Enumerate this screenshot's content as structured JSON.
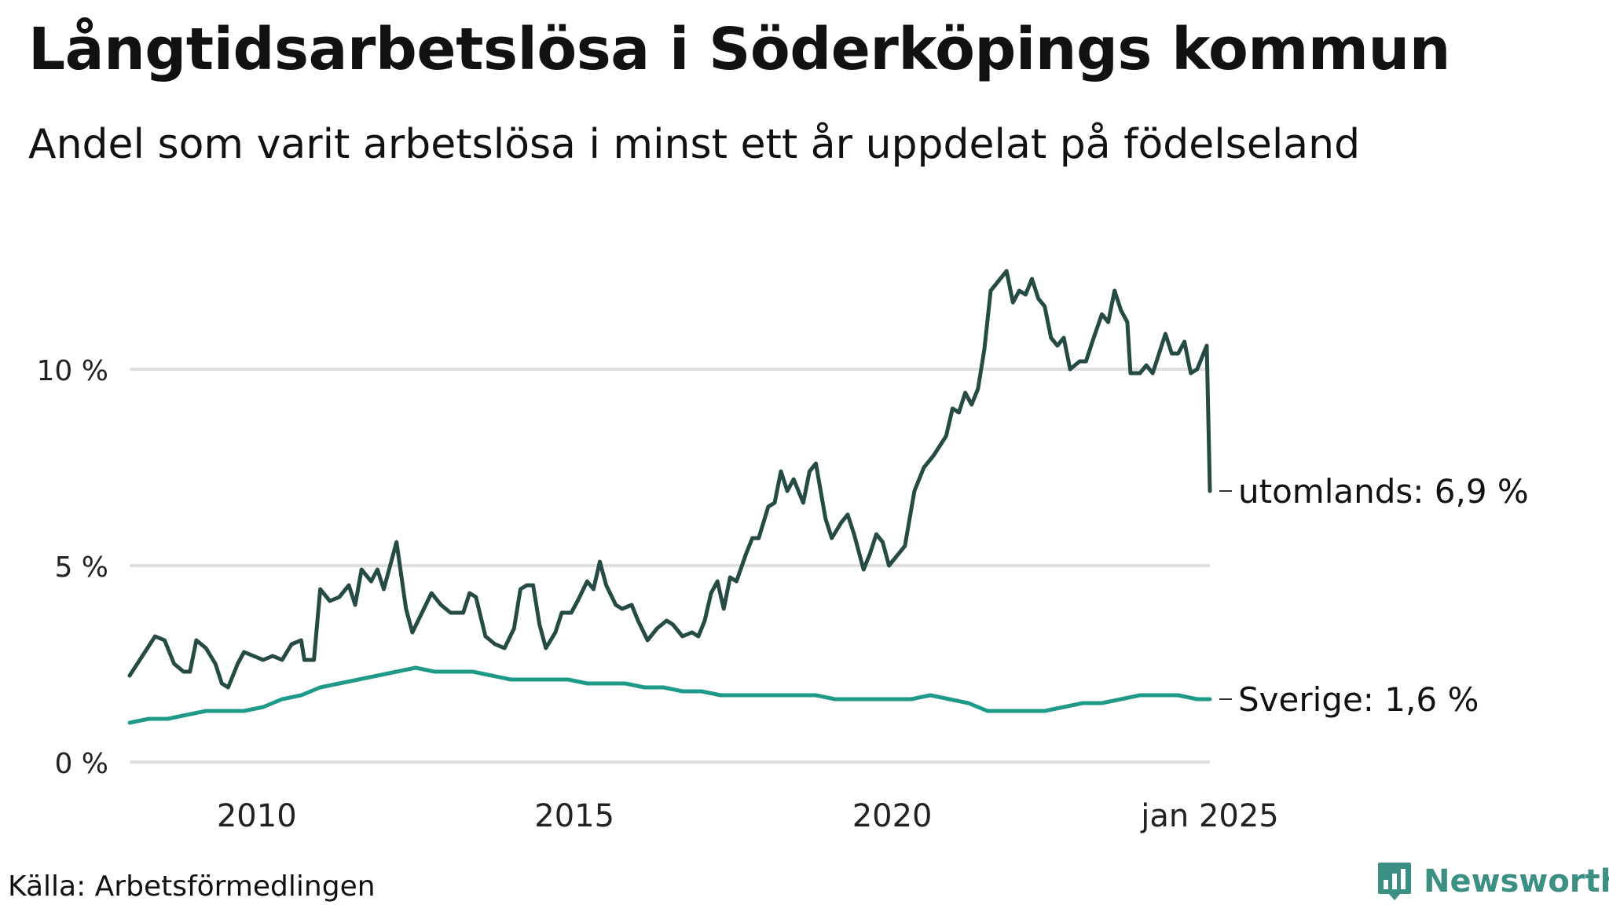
{
  "title": "Långtidsarbetslösa i Söderköpings kommun",
  "subtitle": "Andel som varit arbetslösa i minst ett år uppdelat på födelseland",
  "source": "Källa: Arbetsförmedlingen",
  "brand": "Newsworthy",
  "colors": {
    "utomlands": "#264a44",
    "sverige": "#1f9a88",
    "grid": "#e0e0e0",
    "brand": "#3b8f83"
  },
  "chart_data": {
    "type": "line",
    "title": "Långtidsarbetslösa i Söderköpings kommun",
    "xlabel": "",
    "ylabel": "",
    "xlim": [
      2008.0,
      2025.0
    ],
    "ylim": [
      0,
      14
    ],
    "y_ticks": [
      {
        "value": 0,
        "label": "0 %"
      },
      {
        "value": 5,
        "label": "5 %"
      },
      {
        "value": 10,
        "label": "10 %"
      }
    ],
    "x_ticks": [
      {
        "value": 2010,
        "label": "2010"
      },
      {
        "value": 2015,
        "label": "2015"
      },
      {
        "value": 2020,
        "label": "2020"
      },
      {
        "value": 2025,
        "label": "jan 2025"
      }
    ],
    "series": [
      {
        "name": "utomlands",
        "end_label": "utomlands: 6,9 %",
        "points": [
          [
            2008.0,
            2.2
          ],
          [
            2008.2,
            2.7
          ],
          [
            2008.4,
            3.2
          ],
          [
            2008.55,
            3.1
          ],
          [
            2008.7,
            2.5
          ],
          [
            2008.85,
            2.3
          ],
          [
            2008.95,
            2.3
          ],
          [
            2009.05,
            3.1
          ],
          [
            2009.2,
            2.9
          ],
          [
            2009.35,
            2.5
          ],
          [
            2009.45,
            2.0
          ],
          [
            2009.55,
            1.9
          ],
          [
            2009.7,
            2.5
          ],
          [
            2009.8,
            2.8
          ],
          [
            2009.95,
            2.7
          ],
          [
            2010.1,
            2.6
          ],
          [
            2010.25,
            2.7
          ],
          [
            2010.4,
            2.6
          ],
          [
            2010.55,
            3.0
          ],
          [
            2010.7,
            3.1
          ],
          [
            2010.75,
            2.6
          ],
          [
            2010.9,
            2.6
          ],
          [
            2011.0,
            4.4
          ],
          [
            2011.15,
            4.1
          ],
          [
            2011.3,
            4.2
          ],
          [
            2011.45,
            4.5
          ],
          [
            2011.55,
            4.0
          ],
          [
            2011.65,
            4.9
          ],
          [
            2011.8,
            4.6
          ],
          [
            2011.9,
            4.9
          ],
          [
            2012.0,
            4.4
          ],
          [
            2012.2,
            5.6
          ],
          [
            2012.35,
            3.9
          ],
          [
            2012.45,
            3.3
          ],
          [
            2012.6,
            3.8
          ],
          [
            2012.75,
            4.3
          ],
          [
            2012.9,
            4.0
          ],
          [
            2013.05,
            3.8
          ],
          [
            2013.25,
            3.8
          ],
          [
            2013.35,
            4.3
          ],
          [
            2013.45,
            4.2
          ],
          [
            2013.6,
            3.2
          ],
          [
            2013.75,
            3.0
          ],
          [
            2013.9,
            2.9
          ],
          [
            2014.05,
            3.4
          ],
          [
            2014.15,
            4.4
          ],
          [
            2014.25,
            4.5
          ],
          [
            2014.35,
            4.5
          ],
          [
            2014.45,
            3.5
          ],
          [
            2014.55,
            2.9
          ],
          [
            2014.7,
            3.3
          ],
          [
            2014.8,
            3.8
          ],
          [
            2014.95,
            3.8
          ],
          [
            2015.05,
            4.1
          ],
          [
            2015.2,
            4.6
          ],
          [
            2015.3,
            4.4
          ],
          [
            2015.4,
            5.1
          ],
          [
            2015.5,
            4.5
          ],
          [
            2015.65,
            4.0
          ],
          [
            2015.75,
            3.9
          ],
          [
            2015.9,
            4.0
          ],
          [
            2016.0,
            3.6
          ],
          [
            2016.15,
            3.1
          ],
          [
            2016.3,
            3.4
          ],
          [
            2016.45,
            3.6
          ],
          [
            2016.55,
            3.5
          ],
          [
            2016.7,
            3.2
          ],
          [
            2016.85,
            3.3
          ],
          [
            2016.95,
            3.2
          ],
          [
            2017.05,
            3.6
          ],
          [
            2017.15,
            4.3
          ],
          [
            2017.25,
            4.6
          ],
          [
            2017.35,
            3.9
          ],
          [
            2017.45,
            4.7
          ],
          [
            2017.55,
            4.6
          ],
          [
            2017.7,
            5.3
          ],
          [
            2017.8,
            5.7
          ],
          [
            2017.9,
            5.7
          ],
          [
            2018.05,
            6.5
          ],
          [
            2018.15,
            6.6
          ],
          [
            2018.25,
            7.4
          ],
          [
            2018.35,
            6.9
          ],
          [
            2018.45,
            7.2
          ],
          [
            2018.6,
            6.6
          ],
          [
            2018.7,
            7.4
          ],
          [
            2018.8,
            7.6
          ],
          [
            2018.95,
            6.2
          ],
          [
            2019.05,
            5.7
          ],
          [
            2019.2,
            6.1
          ],
          [
            2019.3,
            6.3
          ],
          [
            2019.4,
            5.8
          ],
          [
            2019.55,
            4.9
          ],
          [
            2019.65,
            5.3
          ],
          [
            2019.75,
            5.8
          ],
          [
            2019.85,
            5.6
          ],
          [
            2019.95,
            5.0
          ],
          [
            2020.05,
            5.2
          ],
          [
            2020.2,
            5.5
          ],
          [
            2020.35,
            6.9
          ],
          [
            2020.5,
            7.5
          ],
          [
            2020.65,
            7.8
          ],
          [
            2020.85,
            8.3
          ],
          [
            2020.95,
            9.0
          ],
          [
            2021.05,
            8.9
          ],
          [
            2021.15,
            9.4
          ],
          [
            2021.25,
            9.1
          ],
          [
            2021.35,
            9.5
          ],
          [
            2021.45,
            10.5
          ],
          [
            2021.55,
            12.0
          ],
          [
            2021.7,
            12.3
          ],
          [
            2021.8,
            12.5
          ],
          [
            2021.9,
            11.7
          ],
          [
            2022.0,
            12.0
          ],
          [
            2022.1,
            11.9
          ],
          [
            2022.2,
            12.3
          ],
          [
            2022.3,
            11.8
          ],
          [
            2022.4,
            11.6
          ],
          [
            2022.5,
            10.8
          ],
          [
            2022.6,
            10.6
          ],
          [
            2022.7,
            10.8
          ],
          [
            2022.8,
            10.0
          ],
          [
            2022.95,
            10.2
          ],
          [
            2023.05,
            10.2
          ],
          [
            2023.15,
            10.7
          ],
          [
            2023.3,
            11.4
          ],
          [
            2023.4,
            11.2
          ],
          [
            2023.5,
            12.0
          ],
          [
            2023.6,
            11.5
          ],
          [
            2023.7,
            11.2
          ],
          [
            2023.75,
            9.9
          ],
          [
            2023.9,
            9.9
          ],
          [
            2024.0,
            10.1
          ],
          [
            2024.1,
            9.9
          ],
          [
            2024.3,
            10.9
          ],
          [
            2024.4,
            10.4
          ],
          [
            2024.5,
            10.4
          ],
          [
            2024.6,
            10.7
          ],
          [
            2024.7,
            9.9
          ],
          [
            2024.8,
            10.0
          ],
          [
            2024.9,
            10.4
          ],
          [
            2024.95,
            10.6
          ],
          [
            2025.0,
            6.9
          ]
        ]
      },
      {
        "name": "Sverige",
        "end_label": "Sverige: 1,6 %",
        "points": [
          [
            2008.0,
            1.0
          ],
          [
            2008.3,
            1.1
          ],
          [
            2008.6,
            1.1
          ],
          [
            2008.9,
            1.2
          ],
          [
            2009.2,
            1.3
          ],
          [
            2009.5,
            1.3
          ],
          [
            2009.8,
            1.3
          ],
          [
            2010.1,
            1.4
          ],
          [
            2010.4,
            1.6
          ],
          [
            2010.7,
            1.7
          ],
          [
            2011.0,
            1.9
          ],
          [
            2011.3,
            2.0
          ],
          [
            2011.6,
            2.1
          ],
          [
            2011.9,
            2.2
          ],
          [
            2012.2,
            2.3
          ],
          [
            2012.5,
            2.4
          ],
          [
            2012.8,
            2.3
          ],
          [
            2013.1,
            2.3
          ],
          [
            2013.4,
            2.3
          ],
          [
            2013.7,
            2.2
          ],
          [
            2014.0,
            2.1
          ],
          [
            2014.3,
            2.1
          ],
          [
            2014.6,
            2.1
          ],
          [
            2014.9,
            2.1
          ],
          [
            2015.2,
            2.0
          ],
          [
            2015.5,
            2.0
          ],
          [
            2015.8,
            2.0
          ],
          [
            2016.1,
            1.9
          ],
          [
            2016.4,
            1.9
          ],
          [
            2016.7,
            1.8
          ],
          [
            2017.0,
            1.8
          ],
          [
            2017.3,
            1.7
          ],
          [
            2017.6,
            1.7
          ],
          [
            2017.9,
            1.7
          ],
          [
            2018.2,
            1.7
          ],
          [
            2018.5,
            1.7
          ],
          [
            2018.8,
            1.7
          ],
          [
            2019.1,
            1.6
          ],
          [
            2019.4,
            1.6
          ],
          [
            2019.7,
            1.6
          ],
          [
            2020.0,
            1.6
          ],
          [
            2020.3,
            1.6
          ],
          [
            2020.6,
            1.7
          ],
          [
            2020.9,
            1.6
          ],
          [
            2021.2,
            1.5
          ],
          [
            2021.5,
            1.3
          ],
          [
            2021.8,
            1.3
          ],
          [
            2022.1,
            1.3
          ],
          [
            2022.4,
            1.3
          ],
          [
            2022.7,
            1.4
          ],
          [
            2023.0,
            1.5
          ],
          [
            2023.3,
            1.5
          ],
          [
            2023.6,
            1.6
          ],
          [
            2023.9,
            1.7
          ],
          [
            2024.2,
            1.7
          ],
          [
            2024.5,
            1.7
          ],
          [
            2024.8,
            1.6
          ],
          [
            2025.0,
            1.6
          ]
        ]
      }
    ]
  }
}
